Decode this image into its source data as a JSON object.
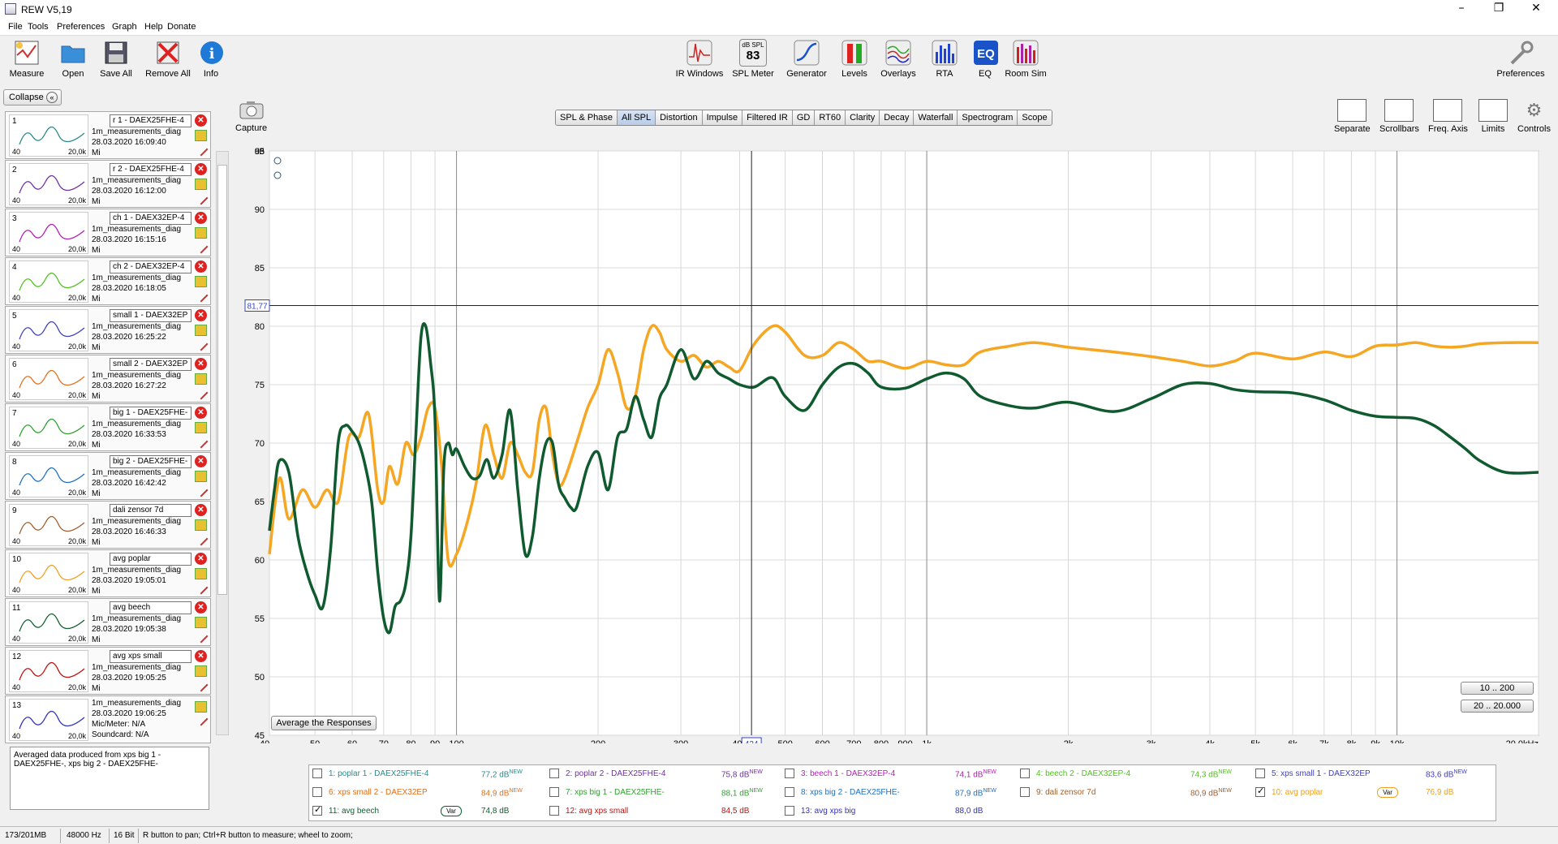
{
  "window": {
    "title": "REW V5,19"
  },
  "menu": [
    "File",
    "Tools",
    "Preferences",
    "Graph",
    "Help",
    "Donate"
  ],
  "toolbar_left": [
    "Measure",
    "Open",
    "Save All",
    "Remove All",
    "Info"
  ],
  "toolbar_center": [
    "IR Windows",
    "SPL Meter",
    "Generator",
    "Levels",
    "Overlays",
    "RTA",
    "EQ",
    "Room Sim"
  ],
  "spl_meter_icon": {
    "label": "dB SPL",
    "value": "83"
  },
  "toolbar_right": "Preferences",
  "collapse_label": "Collapse",
  "measurements": [
    {
      "num": "1",
      "name": "r 1 - DAEX25FHE-4",
      "file": "1m_measurements_diag",
      "date": "28.03.2020 16:09:40",
      "color": "#2a8a8a"
    },
    {
      "num": "2",
      "name": "r 2 - DAEX25FHE-4",
      "file": "1m_measurements_diag",
      "date": "28.03.2020 16:12:00",
      "color": "#7030a0"
    },
    {
      "num": "3",
      "name": "ch 1 - DAEX32EP-4",
      "file": "1m_measurements_diag",
      "date": "28.03.2020 16:15:16",
      "color": "#b020b0"
    },
    {
      "num": "4",
      "name": "ch 2 - DAEX32EP-4",
      "file": "1m_measurements_diag",
      "date": "28.03.2020 16:18:05",
      "color": "#50c020"
    },
    {
      "num": "5",
      "name": "small 1 - DAEX32EP",
      "file": "1m_measurements_diag",
      "date": "28.03.2020 16:25:22",
      "color": "#4040c0"
    },
    {
      "num": "6",
      "name": "small 2 - DAEX32EP",
      "file": "1m_measurements_diag",
      "date": "28.03.2020 16:27:22",
      "color": "#e07020"
    },
    {
      "num": "7",
      "name": "big 1 - DAEX25FHE-",
      "file": "1m_measurements_diag",
      "date": "28.03.2020 16:33:53",
      "color": "#30a030"
    },
    {
      "num": "8",
      "name": "big 2 - DAEX25FHE-",
      "file": "1m_measurements_diag",
      "date": "28.03.2020 16:42:42",
      "color": "#2070c0"
    },
    {
      "num": "9",
      "name": "dali zensor 7d",
      "file": "1m_measurements_diag",
      "date": "28.03.2020 16:46:33",
      "color": "#a06030"
    },
    {
      "num": "10",
      "name": "avg poplar",
      "file": "1m_measurements_diag",
      "date": "28.03.2020 19:05:01",
      "color": "#f0a020"
    },
    {
      "num": "11",
      "name": "avg beech",
      "file": "1m_measurements_diag",
      "date": "28.03.2020 19:05:38",
      "color": "#106030"
    },
    {
      "num": "12",
      "name": "avg xps small",
      "file": "1m_measurements_diag",
      "date": "28.03.2020 19:05:25",
      "color": "#c01010"
    },
    {
      "num": "13",
      "name": "avg xps big",
      "file": "1m_measurements_diag",
      "date": "28.03.2020 19:06:25",
      "color": "#3030c0"
    }
  ],
  "mic_meter": "Mic/Meter: N/A",
  "soundcard": "Soundcard: N/A",
  "mic_short": "Mi",
  "thumb_ticks": {
    "low": "40",
    "high": "20,0k"
  },
  "notes": "Averaged data produced from xps big 1 - DAEX25FHE-, xps big 2 - DAEX25FHE-",
  "capture_label": "Capture",
  "tabs": [
    "SPL & Phase",
    "All SPL",
    "Distortion",
    "Impulse",
    "Filtered IR",
    "GD",
    "RT60",
    "Clarity",
    "Decay",
    "Waterfall",
    "Spectrogram",
    "Scope"
  ],
  "active_tab": "All SPL",
  "graph_tools": [
    "Separate",
    "Scrollbars",
    "Freq. Axis",
    "Limits",
    "Controls"
  ],
  "avg_button": "Average the Responses",
  "range_buttons": [
    "10 .. 200",
    "20 .. 20.000"
  ],
  "cursor": {
    "y_readout": "81,77",
    "x_readout": "424"
  },
  "chart_data": {
    "type": "line",
    "ylabel": "dB",
    "ylim": [
      45,
      95
    ],
    "yticks": [
      "95",
      "90",
      "85",
      "80",
      "75",
      "70",
      "65",
      "60",
      "55",
      "50",
      "45"
    ],
    "xlim": [
      40,
      20000
    ],
    "xscale": "log",
    "xticks": [
      {
        "v": 40,
        "l": "40"
      },
      {
        "v": 50,
        "l": "50"
      },
      {
        "v": 60,
        "l": "60"
      },
      {
        "v": 70,
        "l": "70"
      },
      {
        "v": 80,
        "l": "80"
      },
      {
        "v": 90,
        "l": "90"
      },
      {
        "v": 100,
        "l": "100"
      },
      {
        "v": 200,
        "l": "200"
      },
      {
        "v": 300,
        "l": "300"
      },
      {
        "v": 400,
        "l": "400"
      },
      {
        "v": 500,
        "l": "500"
      },
      {
        "v": 600,
        "l": "600"
      },
      {
        "v": 700,
        "l": "700"
      },
      {
        "v": 800,
        "l": "800"
      },
      {
        "v": 900,
        "l": "900"
      },
      {
        "v": 1000,
        "l": "1k"
      },
      {
        "v": 2000,
        "l": "2k"
      },
      {
        "v": 3000,
        "l": "3k"
      },
      {
        "v": 4000,
        "l": "4k"
      },
      {
        "v": 5000,
        "l": "5k"
      },
      {
        "v": 6000,
        "l": "6k"
      },
      {
        "v": 7000,
        "l": "7k"
      },
      {
        "v": 8000,
        "l": "8k"
      },
      {
        "v": 9000,
        "l": "9k"
      },
      {
        "v": 10000,
        "l": "10k"
      },
      {
        "v": 20000,
        "l": "20,0kHz"
      }
    ],
    "series": [
      {
        "name": "10: avg poplar",
        "color": "#f5a623",
        "x": [
          40,
          42,
          44,
          47,
          50,
          53,
          56,
          59,
          62,
          65,
          68,
          70,
          72,
          75,
          78,
          81,
          84,
          87,
          90,
          93,
          96,
          100,
          105,
          110,
          115,
          120,
          125,
          130,
          135,
          140,
          145,
          150,
          155,
          160,
          165,
          170,
          180,
          190,
          200,
          210,
          220,
          230,
          240,
          250,
          260,
          270,
          280,
          300,
          320,
          340,
          360,
          380,
          400,
          430,
          470,
          500,
          550,
          600,
          650,
          700,
          750,
          800,
          900,
          1000,
          1100,
          1200,
          1300,
          1500,
          1700,
          2000,
          2500,
          3000,
          3500,
          4000,
          4500,
          5000,
          6000,
          7000,
          8000,
          9000,
          10000,
          11000,
          12000,
          13000,
          14000,
          15000,
          17000,
          20000
        ],
        "y": [
          60.5,
          67,
          63.5,
          66,
          64.5,
          66,
          65,
          70.5,
          70.5,
          72.5,
          66,
          65,
          68,
          66.5,
          70,
          69,
          70.5,
          73,
          73,
          68,
          60,
          60.5,
          63,
          66.5,
          71.5,
          69,
          67,
          70,
          69,
          67.5,
          67.5,
          72,
          73,
          69,
          66.5,
          67,
          70,
          73,
          75,
          78,
          76,
          73,
          74,
          78,
          80,
          79.5,
          78,
          77,
          77.5,
          76.5,
          77,
          76.5,
          76.2,
          78.5,
          80,
          79.5,
          77.5,
          77.5,
          78.6,
          78,
          77,
          77,
          76.4,
          77,
          76.7,
          76.7,
          77.8,
          78.3,
          78.6,
          78.2,
          77.8,
          77.4,
          77,
          76.6,
          77,
          77.7,
          77.2,
          77.8,
          77.4,
          78.3,
          78.4,
          78.6,
          78.3,
          78.2,
          78.3,
          78.5,
          78.6,
          78.6
        ]
      },
      {
        "name": "11: avg beech",
        "color": "#0f5a2e",
        "x": [
          40,
          41,
          42,
          44,
          46,
          48,
          50,
          52,
          54,
          56,
          58,
          60,
          62,
          64,
          66,
          68,
          70,
          72,
          74,
          76,
          78,
          80,
          82,
          84,
          86,
          88,
          90,
          92,
          94,
          96,
          98,
          100,
          104,
          108,
          112,
          116,
          120,
          125,
          130,
          135,
          140,
          145,
          150,
          155,
          160,
          165,
          170,
          175,
          180,
          190,
          200,
          210,
          220,
          230,
          240,
          250,
          260,
          270,
          280,
          300,
          320,
          340,
          360,
          380,
          400,
          430,
          470,
          500,
          550,
          600,
          650,
          700,
          750,
          800,
          900,
          1000,
          1100,
          1200,
          1300,
          1500,
          1700,
          2000,
          2500,
          3000,
          3500,
          4000,
          4500,
          5000,
          6000,
          7000,
          8000,
          9000,
          10000,
          11000,
          12000,
          13000,
          14000,
          15000,
          17000,
          20000
        ],
        "y": [
          62.5,
          66,
          68.5,
          67.5,
          62,
          59,
          57,
          56,
          61,
          70,
          71.5,
          71,
          70,
          68,
          65,
          59,
          55,
          53.8,
          56,
          56.5,
          58,
          62,
          71,
          79,
          80,
          77,
          72,
          56.5,
          68,
          70,
          69,
          69.5,
          68,
          67,
          67.2,
          68.6,
          67,
          69,
          72.8,
          66,
          60.5,
          62,
          67,
          70,
          70,
          66.4,
          65.3,
          64.5,
          64.5,
          68,
          69.2,
          66,
          70.5,
          71.2,
          74,
          72,
          70.5,
          73.8,
          75,
          78,
          75.5,
          77,
          76,
          75.5,
          75,
          74.8,
          75.6,
          74,
          72.8,
          75,
          76.5,
          76.8,
          76,
          74.8,
          74.7,
          75.5,
          76,
          75.5,
          74,
          73.2,
          73,
          73.5,
          72.7,
          73.8,
          75,
          75.1,
          74.6,
          74.4,
          74.3,
          73.7,
          72.8,
          72.3,
          72.2,
          72.1,
          71.5,
          70.5,
          69.5,
          68.5,
          67.5,
          67.5
        ]
      }
    ]
  },
  "legend": [
    {
      "label": "1: poplar 1 - DAEX25FHE-4",
      "db": "77,2 dB",
      "new": "NEW",
      "color": "#2a8a8a",
      "checked": false
    },
    {
      "label": "2: poplar 2 - DAEX25FHE-4",
      "db": "75,8 dB",
      "new": "NEW",
      "color": "#7030a0",
      "checked": false
    },
    {
      "label": "3: beech 1 - DAEX32EP-4",
      "db": "74,1 dB",
      "new": "NEW",
      "color": "#b020b0",
      "checked": false
    },
    {
      "label": "4: beech 2 - DAEX32EP-4",
      "db": "74,3 dB",
      "new": "NEW",
      "color": "#50c020",
      "checked": false
    },
    {
      "label": "5: xps small 1 - DAEX32EP",
      "db": "83,6 dB",
      "new": "NEW",
      "color": "#4040c0",
      "checked": false
    },
    {
      "label": "6: xps small 2 - DAEX32EP",
      "db": "84,9 dB",
      "new": "NEW",
      "color": "#e07020",
      "checked": false
    },
    {
      "label": "7: xps big 1 - DAEX25FHE-",
      "db": "88,1 dB",
      "new": "NEW",
      "color": "#30a030",
      "checked": false
    },
    {
      "label": "8: xps big 2 - DAEX25FHE-",
      "db": "87,9 dB",
      "new": "NEW",
      "color": "#2070c0",
      "checked": false
    },
    {
      "label": "9: dali zensor 7d",
      "db": "80,9 dB",
      "new": "NEW",
      "color": "#a06030",
      "checked": false
    },
    {
      "label": "10: avg poplar",
      "db": "76,9 dB",
      "new": "",
      "color": "#f0a020",
      "checked": true,
      "var": "Var"
    },
    {
      "label": "11: avg beech",
      "db": "74,8 dB",
      "new": "",
      "color": "#106030",
      "checked": true,
      "var": "Var"
    },
    {
      "label": "12: avg xps small",
      "db": "84,5 dB",
      "new": "",
      "color": "#c01010",
      "checked": false
    },
    {
      "label": "13: avg xps big",
      "db": "88,0 dB",
      "new": "",
      "color": "#3030c0",
      "checked": false
    }
  ],
  "status": {
    "memory": "173/201MB",
    "rate": "48000 Hz",
    "bits": "16 Bit",
    "hint": "R button to pan; Ctrl+R button to measure; wheel to zoom;"
  }
}
